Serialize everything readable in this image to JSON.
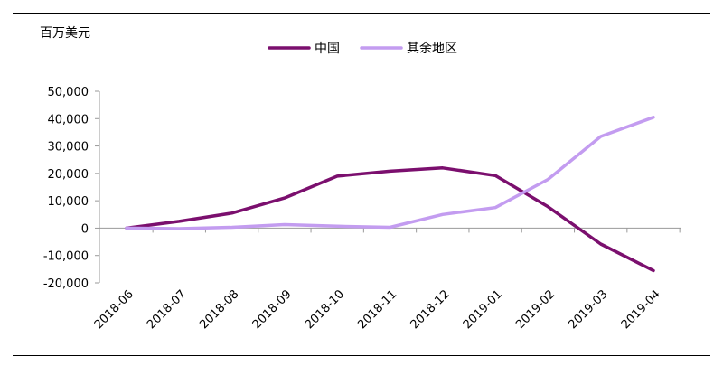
{
  "chart_data": {
    "type": "line",
    "unit_label": "百万美元",
    "categories": [
      "2018-06",
      "2018-07",
      "2018-08",
      "2018-09",
      "2018-10",
      "2018-11",
      "2018-12",
      "2019-01",
      "2019-02",
      "2019-03",
      "2019-04"
    ],
    "series": [
      {
        "name": "中国",
        "color": "#7b0f6e",
        "values": [
          0,
          2500,
          5500,
          11000,
          19000,
          20800,
          22000,
          19200,
          7800,
          -5800,
          -15500
        ]
      },
      {
        "name": "其余地区",
        "color": "#c39cf0",
        "values": [
          0,
          -200,
          300,
          1300,
          700,
          300,
          5000,
          7500,
          17800,
          33500,
          40500
        ]
      }
    ],
    "y_ticks": [
      "50,000",
      "40,000",
      "30,000",
      "20,000",
      "10,000",
      "0",
      "-10,000",
      "-20,000"
    ],
    "ylim": [
      -20000,
      50000
    ],
    "legend_position": "top-center",
    "grid": false
  }
}
